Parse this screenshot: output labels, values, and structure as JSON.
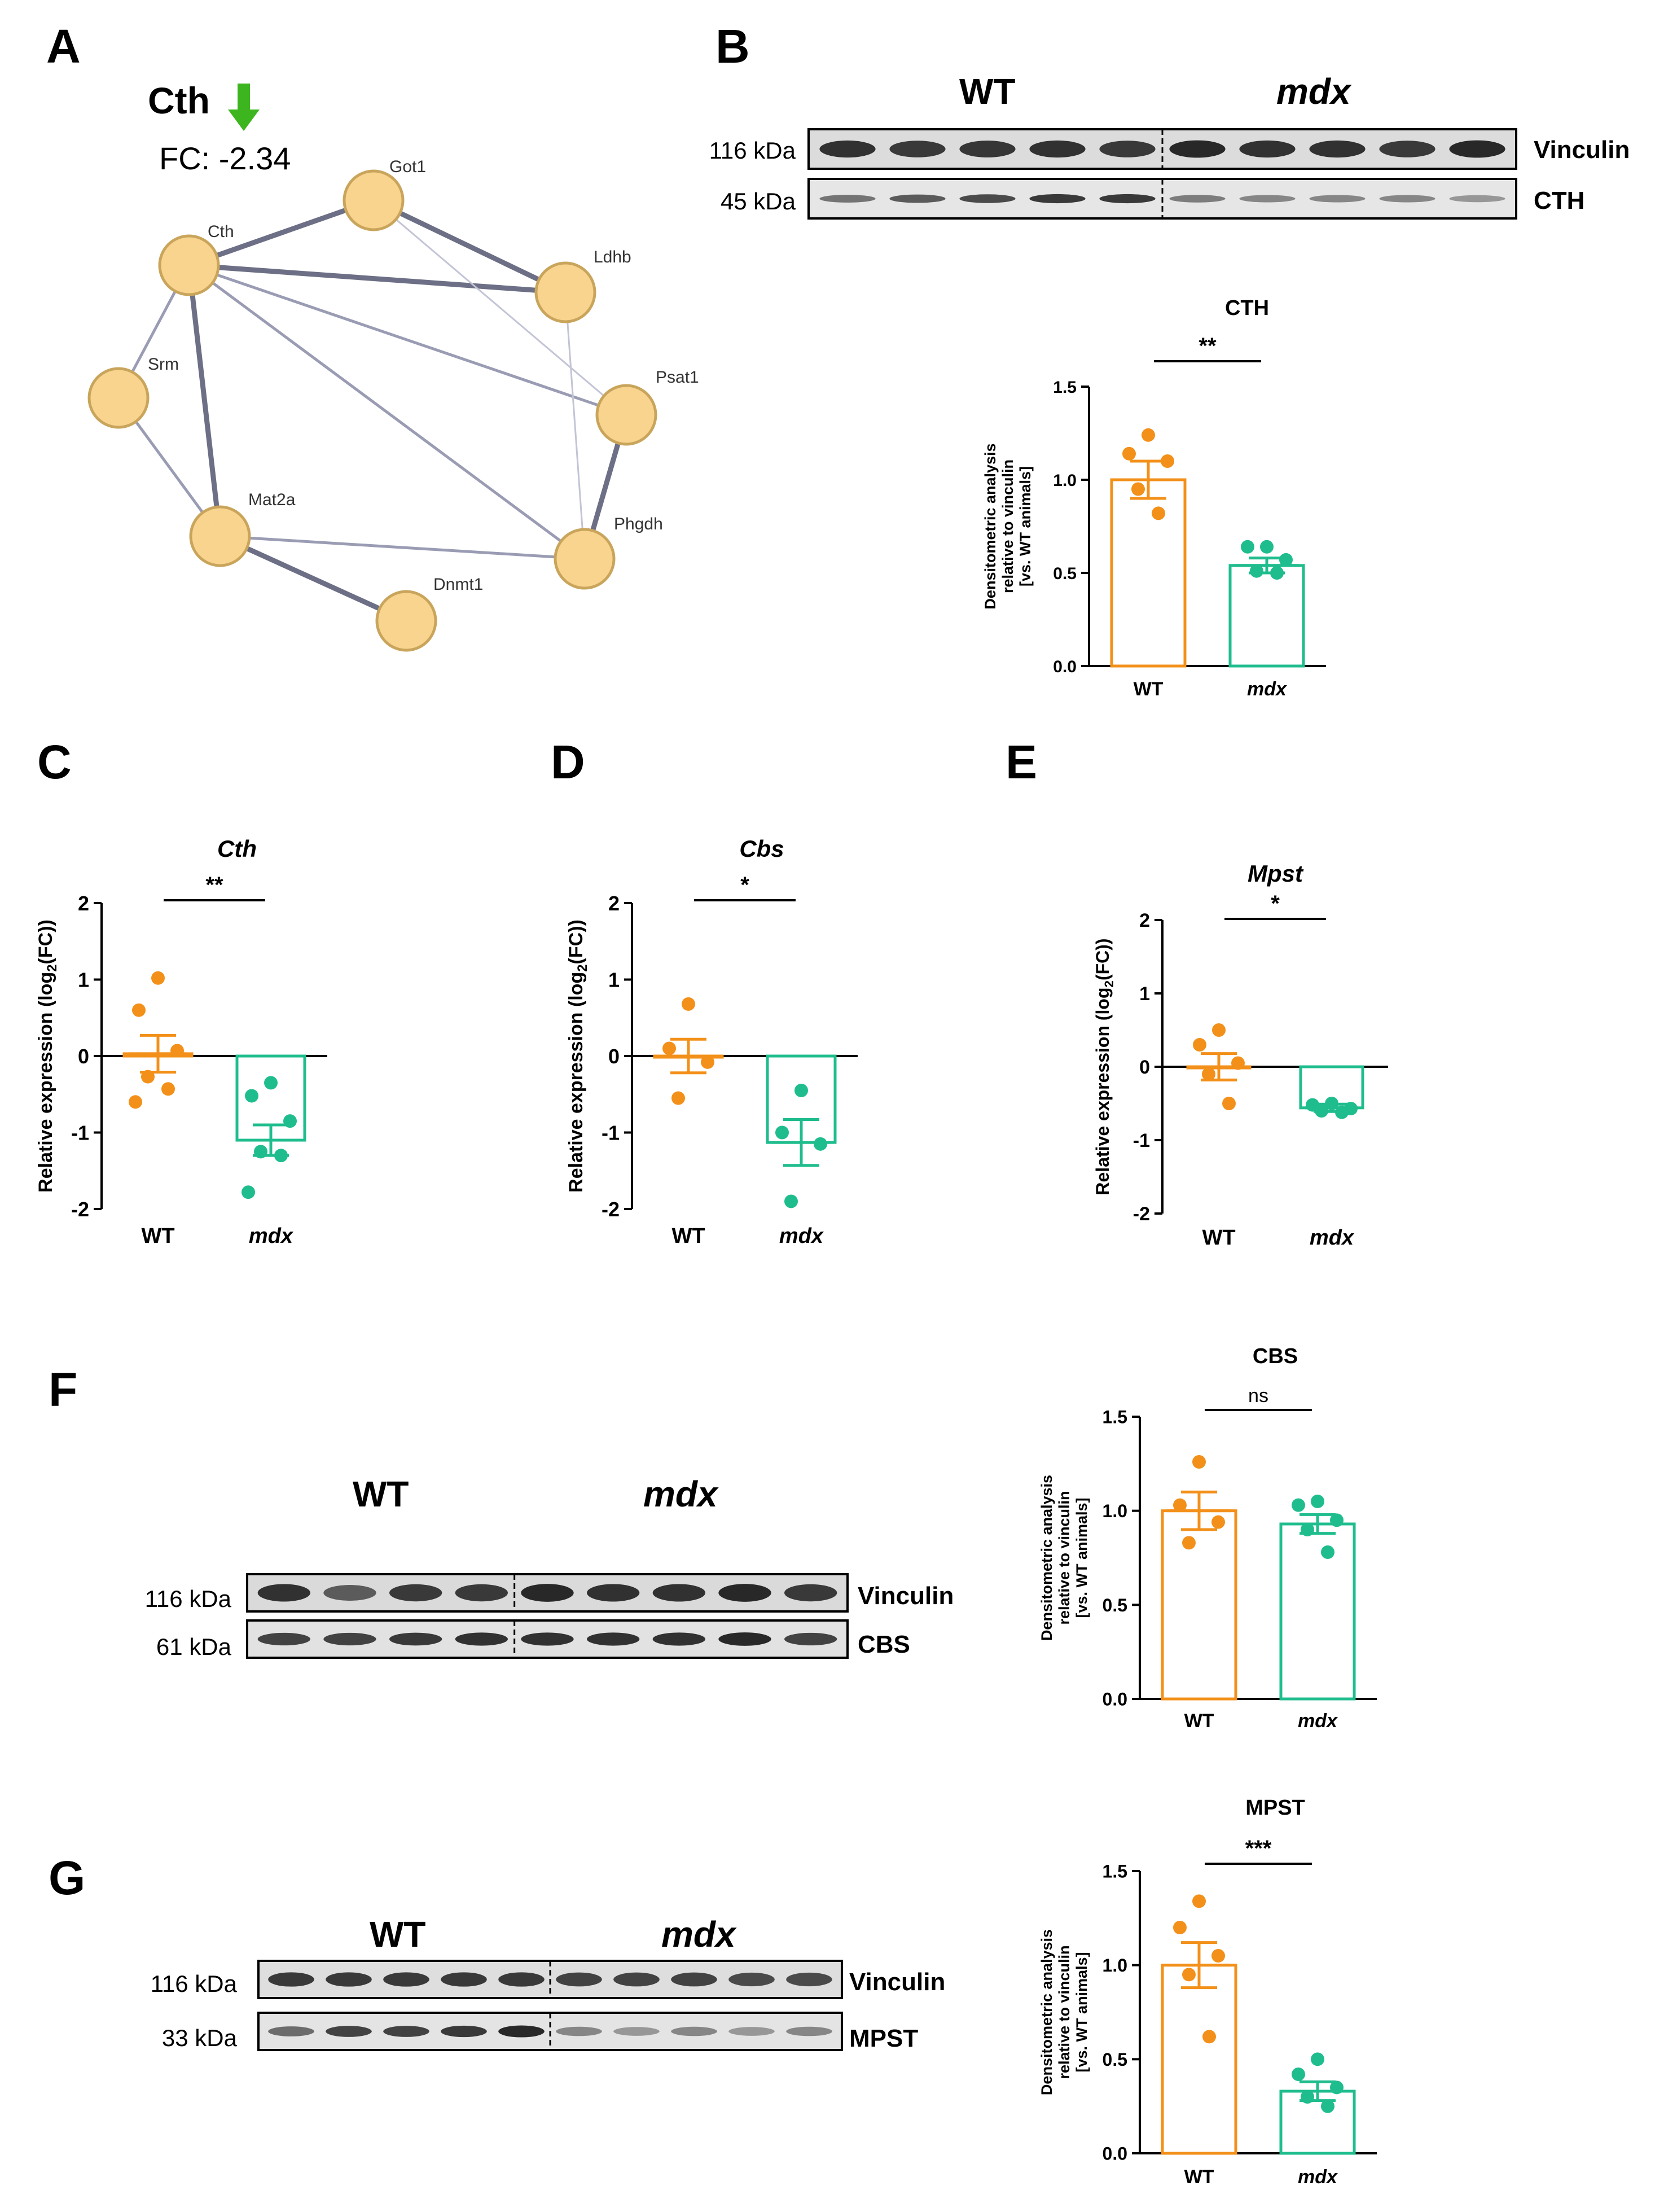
{
  "panels": [
    "A",
    "B",
    "C",
    "D",
    "E",
    "F",
    "G"
  ],
  "network": {
    "focus_gene": "Cth",
    "fc_label": "FC: -2.34",
    "nodes": [
      "Got1",
      "Cth",
      "Ldhb",
      "Srm",
      "Psat1",
      "Mat2a",
      "Phgdh",
      "Dnmt1"
    ],
    "edges": [
      {
        "a": "Cth",
        "b": "Got1",
        "weight": "strong"
      },
      {
        "a": "Cth",
        "b": "Ldhb",
        "weight": "strong"
      },
      {
        "a": "Got1",
        "b": "Ldhb",
        "weight": "strong"
      },
      {
        "a": "Got1",
        "b": "Psat1",
        "weight": "light"
      },
      {
        "a": "Cth",
        "b": "Psat1",
        "weight": "medium"
      },
      {
        "a": "Cth",
        "b": "Phgdh",
        "weight": "medium"
      },
      {
        "a": "Cth",
        "b": "Srm",
        "weight": "medium"
      },
      {
        "a": "Cth",
        "b": "Mat2a",
        "weight": "strong"
      },
      {
        "a": "Srm",
        "b": "Mat2a",
        "weight": "medium"
      },
      {
        "a": "Mat2a",
        "b": "Phgdh",
        "weight": "medium"
      },
      {
        "a": "Mat2a",
        "b": "Dnmt1",
        "weight": "strong"
      },
      {
        "a": "Ldhb",
        "b": "Phgdh",
        "weight": "light"
      },
      {
        "a": "Psat1",
        "b": "Phgdh",
        "weight": "strong"
      }
    ],
    "colors": {
      "node": "#F9D48E",
      "node_stroke": "#C9A55C",
      "arrow": "#3DB51F"
    }
  },
  "blots": {
    "B": {
      "group1": "WT",
      "group2": "mdx",
      "rows": [
        {
          "mw": "116 kDa",
          "protein": "Vinculin"
        },
        {
          "mw": "45 kDa",
          "protein": "CTH"
        }
      ]
    },
    "F": {
      "group1": "WT",
      "group2": "mdx",
      "rows": [
        {
          "mw": "116 kDa",
          "protein": "Vinculin"
        },
        {
          "mw": "61 kDa",
          "protein": "CBS"
        }
      ]
    },
    "G": {
      "group1": "WT",
      "group2": "mdx",
      "rows": [
        {
          "mw": "116 kDa",
          "protein": "Vinculin"
        },
        {
          "mw": "33 kDa",
          "protein": "MPST"
        }
      ]
    }
  },
  "chart_data": [
    {
      "id": "B",
      "type": "bar",
      "title": "CTH",
      "title_italic": false,
      "ylabel_lines": [
        "Densitometric analysis",
        "relative to vinculin",
        "[vs. WT animals]"
      ],
      "categories": [
        "WT",
        "mdx"
      ],
      "ylim": [
        0,
        1.5
      ],
      "yticks": [
        0.0,
        0.5,
        1.0,
        1.5
      ],
      "tick_labels": [
        "0.0",
        "0.5",
        "1.0",
        "1.5"
      ],
      "means": [
        1.0,
        0.54
      ],
      "sem": [
        0.1,
        0.04
      ],
      "points": [
        [
          1.24,
          1.14,
          1.1,
          0.95,
          0.82
        ],
        [
          0.64,
          0.64,
          0.57,
          0.51,
          0.5
        ]
      ],
      "significance": "**",
      "zero_line": false,
      "colors": [
        "#F39019",
        "#1FBD8D"
      ]
    },
    {
      "id": "C",
      "type": "bar",
      "title": "Cth",
      "title_italic": true,
      "ylabel": "Relative expression (log2(FC))",
      "categories": [
        "WT",
        "mdx"
      ],
      "ylim": [
        -2,
        2
      ],
      "yticks": [
        -2,
        -1,
        0,
        1,
        2
      ],
      "tick_labels": [
        "-2",
        "-1",
        "0",
        "1",
        "2"
      ],
      "means": [
        0.03,
        -1.1
      ],
      "sem": [
        0.24,
        0.2
      ],
      "points": [
        [
          1.02,
          0.6,
          0.07,
          -0.27,
          -0.43,
          -0.6
        ],
        [
          -0.35,
          -0.52,
          -0.85,
          -1.25,
          -1.3,
          -1.78
        ]
      ],
      "significance": "**",
      "zero_line": true,
      "colors": [
        "#F39019",
        "#1FBD8D"
      ]
    },
    {
      "id": "D",
      "type": "bar",
      "title": "Cbs",
      "title_italic": true,
      "ylabel": "Relative expression (log2(FC))",
      "categories": [
        "WT",
        "mdx"
      ],
      "ylim": [
        -2,
        2
      ],
      "yticks": [
        -2,
        -1,
        0,
        1,
        2
      ],
      "tick_labels": [
        "-2",
        "-1",
        "0",
        "1",
        "2"
      ],
      "means": [
        0.0,
        -1.13
      ],
      "sem": [
        0.22,
        0.3
      ],
      "points": [
        [
          0.68,
          0.1,
          -0.08,
          -0.55
        ],
        [
          -0.45,
          -1.0,
          -1.15,
          -1.9
        ]
      ],
      "significance": "*",
      "zero_line": true,
      "colors": [
        "#F39019",
        "#1FBD8D"
      ]
    },
    {
      "id": "E",
      "type": "bar",
      "title": "Mpst",
      "title_italic": true,
      "ylabel": "Relative expression (log2(FC))",
      "categories": [
        "WT",
        "mdx"
      ],
      "ylim": [
        -2,
        2
      ],
      "yticks": [
        -2,
        -1,
        0,
        1,
        2
      ],
      "tick_labels": [
        "-2",
        "-1",
        "0",
        "1",
        "2"
      ],
      "means": [
        0.0,
        -0.56
      ],
      "sem": [
        0.18,
        0.05
      ],
      "points": [
        [
          0.5,
          0.3,
          0.05,
          -0.1,
          -0.5
        ],
        [
          -0.5,
          -0.52,
          -0.57,
          -0.6,
          -0.62
        ]
      ],
      "significance": "*",
      "zero_line": true,
      "colors": [
        "#F39019",
        "#1FBD8D"
      ]
    },
    {
      "id": "F",
      "type": "bar",
      "title": "CBS",
      "title_italic": false,
      "ylabel_lines": [
        "Densitometric analysis",
        "relative to vinculin",
        "[vs. WT animals]"
      ],
      "categories": [
        "WT",
        "mdx"
      ],
      "ylim": [
        0,
        1.5
      ],
      "yticks": [
        0.0,
        0.5,
        1.0,
        1.5
      ],
      "tick_labels": [
        "0.0",
        "0.5",
        "1.0",
        "1.5"
      ],
      "means": [
        1.0,
        0.93
      ],
      "sem": [
        0.1,
        0.05
      ],
      "points": [
        [
          1.26,
          1.03,
          0.94,
          0.83
        ],
        [
          1.05,
          1.03,
          0.95,
          0.9,
          0.78
        ]
      ],
      "significance": "ns",
      "zero_line": false,
      "colors": [
        "#F39019",
        "#1FBD8D"
      ]
    },
    {
      "id": "G",
      "type": "bar",
      "title": "MPST",
      "title_italic": false,
      "ylabel_lines": [
        "Densitometric analysis",
        "relative to vinculin",
        "[vs. WT animals]"
      ],
      "categories": [
        "WT",
        "mdx"
      ],
      "ylim": [
        0,
        1.5
      ],
      "yticks": [
        0.0,
        0.5,
        1.0,
        1.5
      ],
      "tick_labels": [
        "0.0",
        "0.5",
        "1.0",
        "1.5"
      ],
      "means": [
        1.0,
        0.33
      ],
      "sem": [
        0.12,
        0.05
      ],
      "points": [
        [
          1.34,
          1.2,
          1.05,
          0.95,
          0.62
        ],
        [
          0.5,
          0.42,
          0.35,
          0.3,
          0.25
        ]
      ],
      "significance": "***",
      "zero_line": false,
      "colors": [
        "#F39019",
        "#1FBD8D"
      ]
    }
  ]
}
